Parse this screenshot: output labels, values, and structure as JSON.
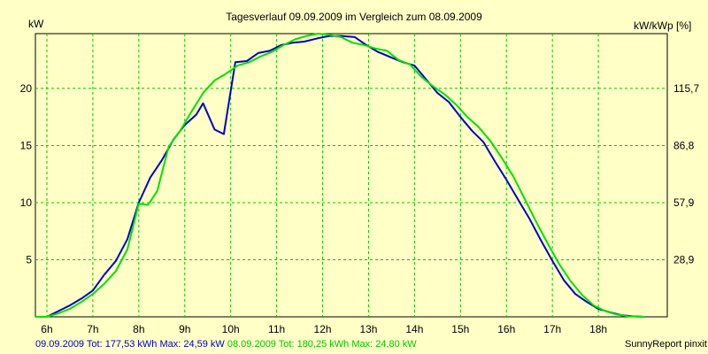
{
  "chart_data": {
    "type": "line",
    "title": "Tagesverlauf 09.09.2009 im Vergleich zum 08.09.2009",
    "ylabel_left": "kW",
    "ylabel_right": "kW/kWp [%]",
    "x_ticks": [
      "6h",
      "7h",
      "8h",
      "9h",
      "10h",
      "11h",
      "12h",
      "13h",
      "14h",
      "15h",
      "16h",
      "17h",
      "18h"
    ],
    "y_ticks_left": [
      "5",
      "10",
      "15",
      "20"
    ],
    "y_ticks_right": [
      "28,9",
      "57,9",
      "86,8",
      "115,7"
    ],
    "xlim": [
      5.75,
      19.5
    ],
    "ylim": [
      0,
      24.8
    ],
    "grid": true,
    "series": [
      {
        "name": "09.09.2009",
        "color": "#0000c8",
        "points": [
          [
            5.75,
            0
          ],
          [
            6.0,
            0
          ],
          [
            6.25,
            0.5
          ],
          [
            6.5,
            1.0
          ],
          [
            6.75,
            1.6
          ],
          [
            7.0,
            2.3
          ],
          [
            7.25,
            3.7
          ],
          [
            7.5,
            4.9
          ],
          [
            7.75,
            6.8
          ],
          [
            8.0,
            10.0
          ],
          [
            8.25,
            12.2
          ],
          [
            8.5,
            13.7
          ],
          [
            8.75,
            15.5
          ],
          [
            9.0,
            16.8
          ],
          [
            9.25,
            17.7
          ],
          [
            9.4,
            18.7
          ],
          [
            9.65,
            16.4
          ],
          [
            9.85,
            16.0
          ],
          [
            10.1,
            22.3
          ],
          [
            10.35,
            22.4
          ],
          [
            10.6,
            23.1
          ],
          [
            10.85,
            23.3
          ],
          [
            11.1,
            23.8
          ],
          [
            11.35,
            24.0
          ],
          [
            11.6,
            24.1
          ],
          [
            11.9,
            24.4
          ],
          [
            12.15,
            24.6
          ],
          [
            12.4,
            24.6
          ],
          [
            12.7,
            24.5
          ],
          [
            12.95,
            23.8
          ],
          [
            13.2,
            23.2
          ],
          [
            13.5,
            22.7
          ],
          [
            13.75,
            22.3
          ],
          [
            14.0,
            22.0
          ],
          [
            14.25,
            20.8
          ],
          [
            14.5,
            19.6
          ],
          [
            14.75,
            18.8
          ],
          [
            15.0,
            17.5
          ],
          [
            15.25,
            16.3
          ],
          [
            15.5,
            15.3
          ],
          [
            15.75,
            13.6
          ],
          [
            16.0,
            12.0
          ],
          [
            16.25,
            10.3
          ],
          [
            16.5,
            8.6
          ],
          [
            16.75,
            6.7
          ],
          [
            17.0,
            4.9
          ],
          [
            17.25,
            3.2
          ],
          [
            17.5,
            2.0
          ],
          [
            17.75,
            1.3
          ],
          [
            18.0,
            0.7
          ],
          [
            18.25,
            0.4
          ],
          [
            18.5,
            0.15
          ],
          [
            18.75,
            0.05
          ],
          [
            19.0,
            0
          ]
        ]
      },
      {
        "name": "08.09.2009",
        "color": "#00e100",
        "points": [
          [
            5.75,
            0
          ],
          [
            6.0,
            0
          ],
          [
            6.25,
            0.3
          ],
          [
            6.5,
            0.7
          ],
          [
            6.75,
            1.3
          ],
          [
            7.0,
            2.0
          ],
          [
            7.25,
            2.9
          ],
          [
            7.5,
            4.0
          ],
          [
            7.75,
            5.9
          ],
          [
            8.0,
            9.9
          ],
          [
            8.2,
            9.8
          ],
          [
            8.4,
            11.0
          ],
          [
            8.65,
            14.9
          ],
          [
            8.9,
            16.3
          ],
          [
            9.15,
            18.0
          ],
          [
            9.4,
            19.6
          ],
          [
            9.65,
            20.7
          ],
          [
            9.9,
            21.3
          ],
          [
            10.15,
            22.0
          ],
          [
            10.4,
            22.3
          ],
          [
            10.65,
            22.8
          ],
          [
            10.9,
            23.2
          ],
          [
            11.15,
            23.8
          ],
          [
            11.4,
            24.3
          ],
          [
            11.65,
            24.6
          ],
          [
            11.9,
            24.8
          ],
          [
            12.15,
            24.7
          ],
          [
            12.4,
            24.5
          ],
          [
            12.65,
            24.0
          ],
          [
            12.9,
            23.8
          ],
          [
            13.15,
            23.5
          ],
          [
            13.4,
            23.3
          ],
          [
            13.65,
            22.5
          ],
          [
            13.9,
            22.1
          ],
          [
            14.15,
            21.0
          ],
          [
            14.4,
            20.2
          ],
          [
            14.65,
            19.5
          ],
          [
            14.9,
            18.6
          ],
          [
            15.15,
            17.5
          ],
          [
            15.4,
            16.6
          ],
          [
            15.65,
            15.4
          ],
          [
            15.9,
            13.9
          ],
          [
            16.15,
            12.3
          ],
          [
            16.4,
            10.3
          ],
          [
            16.65,
            8.3
          ],
          [
            16.9,
            6.4
          ],
          [
            17.15,
            4.6
          ],
          [
            17.4,
            3.1
          ],
          [
            17.65,
            1.9
          ],
          [
            17.9,
            1.0
          ],
          [
            18.15,
            0.5
          ],
          [
            18.4,
            0.2
          ],
          [
            18.65,
            0.05
          ],
          [
            19.0,
            0
          ]
        ]
      }
    ]
  },
  "footer": {
    "day1_text": "09.09.2009 Tot: 177,53 kWh Max: 24,59 kW",
    "day1_color": "#0000c8",
    "day2_text": "08.09.2009 Tot: 180,25 kWh Max: 24,80 kW",
    "day2_color": "#00c800"
  },
  "credit": "SunnyReport pinxit"
}
